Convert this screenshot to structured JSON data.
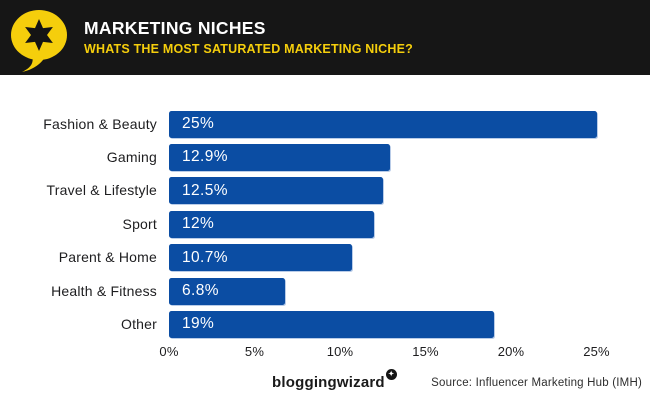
{
  "header": {
    "title": "MARKETING NICHES",
    "subtitle": "WHATS THE MOST SATURATED MARKETING NICHE?"
  },
  "footer": {
    "brand": "bloggingwizard",
    "badge_glyph": "✦",
    "source": "Source: Influencer Marketing Hub (IMH)"
  },
  "colors": {
    "header_bg": "#161616",
    "accent_yellow": "#F5CE0C",
    "bar_blue": "#0B4DA3",
    "bar_value_text": "#FFFFFF",
    "label_text": "#1D1D1F"
  },
  "chart_data": {
    "type": "bar",
    "orientation": "horizontal",
    "title": "MARKETING NICHES",
    "subtitle": "WHATS THE MOST SATURATED MARKETING NICHE?",
    "categories": [
      "Fashion & Beauty",
      "Gaming",
      "Travel & Lifestyle",
      "Sport",
      "Parent & Home",
      "Health & Fitness",
      "Other"
    ],
    "values": [
      25,
      12.9,
      12.5,
      12,
      10.7,
      6.8,
      19
    ],
    "value_labels": [
      "25%",
      "12.9%",
      "12.5%",
      "12%",
      "10.7%",
      "6.8%",
      "19%"
    ],
    "x_ticks": [
      "0%",
      "5%",
      "10%",
      "15%",
      "20%",
      "25%"
    ],
    "x_range": [
      0,
      25
    ],
    "xlabel": "",
    "ylabel": "",
    "grid": false,
    "legend": false,
    "bar_color": "#0B4DA3"
  }
}
